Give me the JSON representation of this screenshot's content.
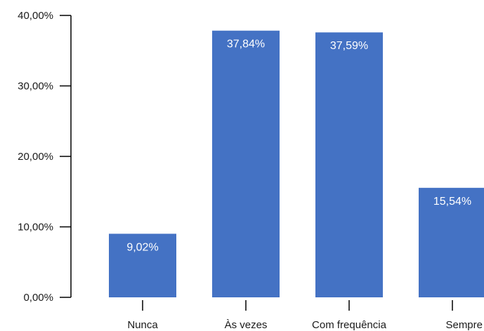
{
  "chart_data": {
    "type": "bar",
    "categories": [
      "Nunca",
      "Às vezes",
      "Com frequência",
      "Sempre"
    ],
    "values": [
      9.02,
      37.84,
      37.59,
      15.54
    ],
    "data_labels": [
      "9,02%",
      "37,84%",
      "37,59%",
      "15,54%"
    ],
    "y_ticks": [
      "0,00%",
      "10,00%",
      "20,00%",
      "30,00%",
      "40,00%"
    ],
    "ylim": [
      0,
      40
    ],
    "grid": false,
    "legend": "none",
    "bar_color": "#4472c4"
  }
}
